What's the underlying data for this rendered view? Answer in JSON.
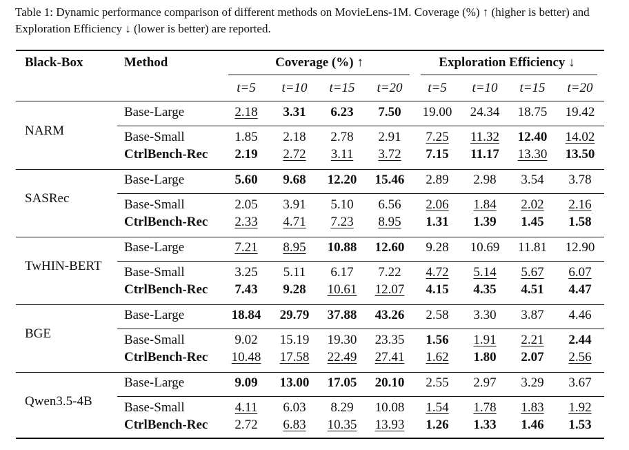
{
  "caption": "Table 1: Dynamic performance comparison of different methods on MovieLens-1M. Coverage (%) ↑ (higher is better) and Exploration Efficiency ↓ (lower is better) are reported.",
  "headers": {
    "blackbox": "Black-Box",
    "method": "Method",
    "coverage": "Coverage (%) ↑",
    "efficiency": "Exploration Efficiency ↓",
    "steps": [
      "t=5",
      "t=10",
      "t=15",
      "t=20",
      "t=5",
      "t=10",
      "t=15",
      "t=20"
    ]
  },
  "groups": [
    {
      "blackbox": "NARM",
      "rows": [
        {
          "method": "Base-Large",
          "method_bold": false,
          "values": [
            "2.18",
            "3.31",
            "6.23",
            "7.50",
            "19.00",
            "24.34",
            "18.75",
            "19.42"
          ],
          "styles": [
            "u",
            "b",
            "b",
            "b",
            "",
            "",
            "",
            ""
          ]
        },
        {
          "method": "Base-Small",
          "method_bold": false,
          "values": [
            "1.85",
            "2.18",
            "2.78",
            "2.91",
            "7.25",
            "11.32",
            "12.40",
            "14.02"
          ],
          "styles": [
            "",
            "",
            "",
            "",
            "u",
            "u",
            "b",
            "u"
          ]
        },
        {
          "method": "CtrlBench-Rec",
          "method_bold": true,
          "values": [
            "2.19",
            "2.72",
            "3.11",
            "3.72",
            "7.15",
            "11.17",
            "13.30",
            "13.50"
          ],
          "styles": [
            "b",
            "u",
            "u",
            "u",
            "b",
            "b",
            "u",
            "b"
          ]
        }
      ]
    },
    {
      "blackbox": "SASRec",
      "rows": [
        {
          "method": "Base-Large",
          "method_bold": false,
          "values": [
            "5.60",
            "9.68",
            "12.20",
            "15.46",
            "2.89",
            "2.98",
            "3.54",
            "3.78"
          ],
          "styles": [
            "b",
            "b",
            "b",
            "b",
            "",
            "",
            "",
            ""
          ]
        },
        {
          "method": "Base-Small",
          "method_bold": false,
          "values": [
            "2.05",
            "3.91",
            "5.10",
            "6.56",
            "2.06",
            "1.84",
            "2.02",
            "2.16"
          ],
          "styles": [
            "",
            "",
            "",
            "",
            "u",
            "u",
            "u",
            "u"
          ]
        },
        {
          "method": "CtrlBench-Rec",
          "method_bold": true,
          "values": [
            "2.33",
            "4.71",
            "7.23",
            "8.95",
            "1.31",
            "1.39",
            "1.45",
            "1.58"
          ],
          "styles": [
            "u",
            "u",
            "u",
            "u",
            "b",
            "b",
            "b",
            "b"
          ]
        }
      ]
    },
    {
      "blackbox": "TwHIN-BERT",
      "rows": [
        {
          "method": "Base-Large",
          "method_bold": false,
          "values": [
            "7.21",
            "8.95",
            "10.88",
            "12.60",
            "9.28",
            "10.69",
            "11.81",
            "12.90"
          ],
          "styles": [
            "u",
            "u",
            "b",
            "b",
            "",
            "",
            "",
            ""
          ]
        },
        {
          "method": "Base-Small",
          "method_bold": false,
          "values": [
            "3.25",
            "5.11",
            "6.17",
            "7.22",
            "4.72",
            "5.14",
            "5.67",
            "6.07"
          ],
          "styles": [
            "",
            "",
            "",
            "",
            "u",
            "u",
            "u",
            "u"
          ]
        },
        {
          "method": "CtrlBench-Rec",
          "method_bold": true,
          "values": [
            "7.43",
            "9.28",
            "10.61",
            "12.07",
            "4.15",
            "4.35",
            "4.51",
            "4.47"
          ],
          "styles": [
            "b",
            "b",
            "u",
            "u",
            "b",
            "b",
            "b",
            "b"
          ]
        }
      ]
    },
    {
      "blackbox": "BGE",
      "rows": [
        {
          "method": "Base-Large",
          "method_bold": false,
          "values": [
            "18.84",
            "29.79",
            "37.88",
            "43.26",
            "2.58",
            "3.30",
            "3.87",
            "4.46"
          ],
          "styles": [
            "b",
            "b",
            "b",
            "b",
            "",
            "",
            "",
            ""
          ]
        },
        {
          "method": "Base-Small",
          "method_bold": false,
          "values": [
            "9.02",
            "15.19",
            "19.30",
            "23.35",
            "1.56",
            "1.91",
            "2.21",
            "2.44"
          ],
          "styles": [
            "",
            "",
            "",
            "",
            "b",
            "u",
            "u",
            "b"
          ]
        },
        {
          "method": "CtrlBench-Rec",
          "method_bold": true,
          "values": [
            "10.48",
            "17.58",
            "22.49",
            "27.41",
            "1.62",
            "1.80",
            "2.07",
            "2.56"
          ],
          "styles": [
            "u",
            "u",
            "u",
            "u",
            "u",
            "b",
            "b",
            "u"
          ]
        }
      ]
    },
    {
      "blackbox": "Qwen3.5-4B",
      "rows": [
        {
          "method": "Base-Large",
          "method_bold": false,
          "values": [
            "9.09",
            "13.00",
            "17.05",
            "20.10",
            "2.55",
            "2.97",
            "3.29",
            "3.67"
          ],
          "styles": [
            "b",
            "b",
            "b",
            "b",
            "",
            "",
            "",
            ""
          ]
        },
        {
          "method": "Base-Small",
          "method_bold": false,
          "values": [
            "4.11",
            "6.03",
            "8.29",
            "10.08",
            "1.54",
            "1.78",
            "1.83",
            "1.92"
          ],
          "styles": [
            "u",
            "",
            "",
            "",
            "u",
            "u",
            "u",
            "u"
          ]
        },
        {
          "method": "CtrlBench-Rec",
          "method_bold": true,
          "values": [
            "2.72",
            "6.83",
            "10.35",
            "13.93",
            "1.26",
            "1.33",
            "1.46",
            "1.53"
          ],
          "styles": [
            "",
            "u",
            "u",
            "u",
            "b",
            "b",
            "b",
            "b"
          ]
        }
      ]
    }
  ]
}
